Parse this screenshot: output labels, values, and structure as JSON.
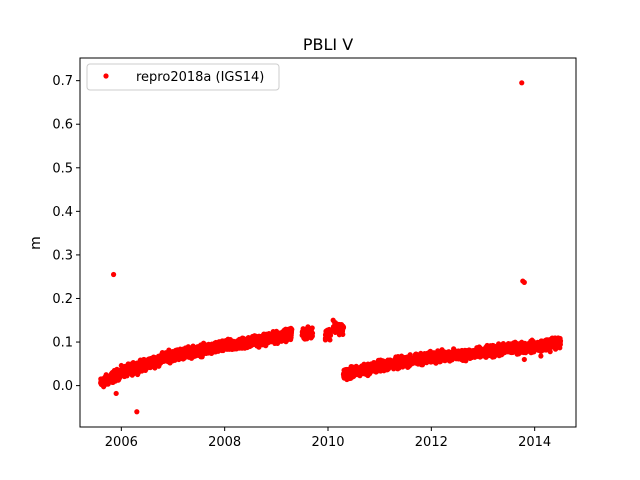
{
  "chart_data": {
    "type": "scatter",
    "title": "PBLI V",
    "xlabel": "",
    "ylabel": "m",
    "xlim": [
      2005.2,
      2014.8
    ],
    "ylim": [
      -0.095,
      0.752
    ],
    "x_ticks": [
      2006,
      2008,
      2010,
      2012,
      2014
    ],
    "x_tick_labels": [
      "2006",
      "2008",
      "2010",
      "2012",
      "2014"
    ],
    "y_ticks": [
      0.0,
      0.1,
      0.2,
      0.3,
      0.4,
      0.5,
      0.6,
      0.7
    ],
    "y_tick_labels": [
      "0.0",
      "0.1",
      "0.2",
      "0.3",
      "0.4",
      "0.5",
      "0.6",
      "0.7"
    ],
    "grid": false,
    "legend_position": "top-left",
    "series": [
      {
        "name": "repro2018a (IGS14)",
        "color": "#ff0000",
        "marker": "circle",
        "trend_segments": [
          {
            "x": [
              2005.6,
              2006.0,
              2006.5,
              2007.0,
              2007.5,
              2008.0,
              2008.5,
              2009.0,
              2009.3
            ],
            "y": [
              0.005,
              0.03,
              0.05,
              0.07,
              0.08,
              0.09,
              0.1,
              0.11,
              0.12
            ]
          },
          {
            "x": [
              2009.5,
              2009.7
            ],
            "y": [
              0.12,
              0.12
            ]
          },
          {
            "x": [
              2009.95,
              2010.05
            ],
            "y": [
              0.12,
              0.12
            ]
          },
          {
            "x": [
              2010.1,
              2010.3
            ],
            "y": [
              0.135,
              0.13
            ]
          },
          {
            "x": [
              2010.3,
              2010.5,
              2011.0,
              2011.5,
              2012.0,
              2012.5,
              2013.0,
              2013.5,
              2014.0,
              2014.5
            ],
            "y": [
              0.025,
              0.03,
              0.045,
              0.055,
              0.065,
              0.07,
              0.075,
              0.085,
              0.09,
              0.1
            ]
          }
        ],
        "outliers": [
          {
            "x": 2005.85,
            "y": 0.255
          },
          {
            "x": 2005.9,
            "y": -0.018
          },
          {
            "x": 2006.3,
            "y": -0.06
          },
          {
            "x": 2009.95,
            "y": 0.105
          },
          {
            "x": 2010.1,
            "y": 0.15
          },
          {
            "x": 2013.75,
            "y": 0.695
          },
          {
            "x": 2013.77,
            "y": 0.24
          },
          {
            "x": 2013.8,
            "y": 0.237
          },
          {
            "x": 2013.8,
            "y": 0.06
          },
          {
            "x": 2014.12,
            "y": 0.068
          },
          {
            "x": 2014.3,
            "y": 0.078
          }
        ]
      }
    ]
  }
}
